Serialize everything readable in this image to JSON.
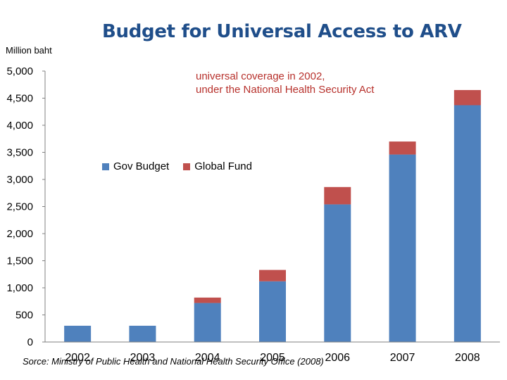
{
  "slide": {
    "title": "Budget for Universal Access to ARV",
    "unit_label": "Million baht",
    "annotation_line1": "universal coverage in 2002,",
    "annotation_line2": "under the National Health Security Act",
    "source": "Sorce: Ministry of Public Health and National Health Security Office (2008)"
  },
  "colors": {
    "gov": "#4f81bd",
    "global": "#c0504d",
    "title": "#1f4e8a",
    "annotation": "#b7312c",
    "axis": "#808080"
  },
  "chart_data": {
    "type": "bar",
    "stacked": true,
    "title": "Budget for Universal Access to ARV",
    "ylabel": "Million baht",
    "xlabel": "",
    "categories": [
      "2002",
      "2003",
      "2004",
      "2005",
      "2006",
      "2007",
      "2008"
    ],
    "series": [
      {
        "name": "Gov Budget",
        "color": "#4f81bd",
        "values": [
          300,
          300,
          720,
          1120,
          2540,
          3460,
          4370
        ]
      },
      {
        "name": "Global Fund",
        "color": "#c0504d",
        "values": [
          0,
          0,
          100,
          210,
          320,
          240,
          280
        ]
      }
    ],
    "ylim": [
      0,
      5000
    ],
    "yticks": [
      "0",
      "500",
      "1,000",
      "1,500",
      "2,000",
      "2,500",
      "3,000",
      "3,500",
      "4,000",
      "4,500",
      "5,000"
    ],
    "legend_position": "upper-left inside plot",
    "grid": false
  }
}
